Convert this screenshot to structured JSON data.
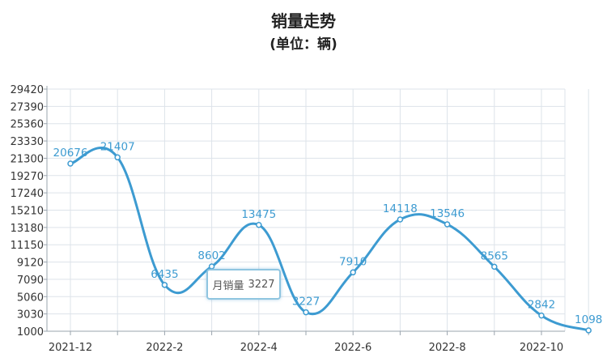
{
  "title": "销量走势",
  "subtitle": "(单位：辆)",
  "tooltip": {
    "label": "月销量",
    "value": "3227"
  },
  "colors": {
    "line": "#3d9bd1",
    "label": "#3d9bd1",
    "grid": "#dde3ea",
    "axis": "#9aa4ae",
    "text": "#333333"
  },
  "chart_data": {
    "type": "line",
    "title": "销量走势",
    "subtitle": "(单位：辆)",
    "x_ticks": [
      "2021-12",
      "2022-2",
      "2022-4",
      "2022-6",
      "2022-8",
      "2022-10"
    ],
    "y_ticks": [
      1000,
      3030,
      5060,
      7090,
      9120,
      11150,
      13180,
      15210,
      17240,
      19270,
      21300,
      23330,
      25360,
      27390,
      29420
    ],
    "ylim": [
      1000,
      29420
    ],
    "grid": true,
    "series": [
      {
        "values": [
          20676,
          21407,
          6435,
          8602,
          13475,
          3227,
          7910,
          14118,
          13546,
          8565,
          2842,
          1098
        ]
      }
    ]
  }
}
